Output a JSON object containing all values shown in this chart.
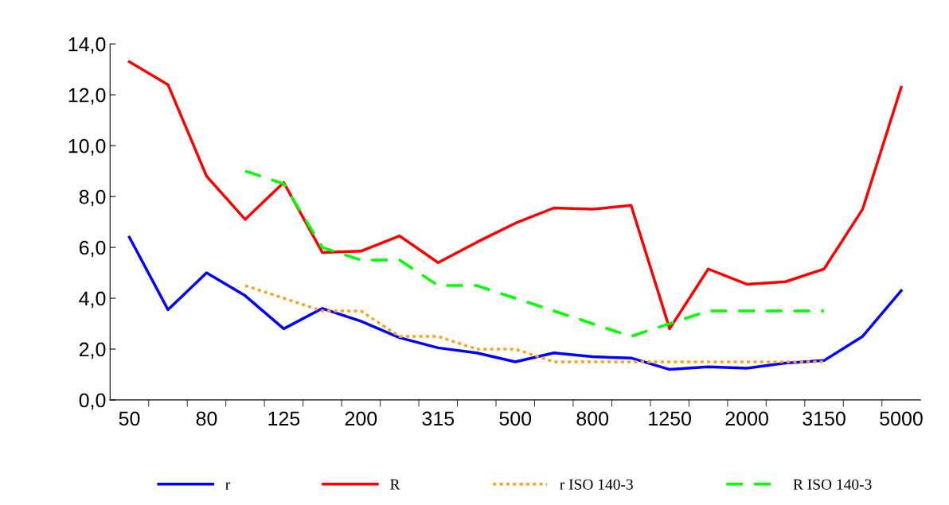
{
  "chart_data": {
    "type": "line",
    "categories": [
      "50",
      null,
      "80",
      null,
      "125",
      null,
      "200",
      null,
      "315",
      null,
      "500",
      null,
      "800",
      null,
      "1250",
      null,
      "2000",
      null,
      "3150",
      null,
      "5000"
    ],
    "series": [
      {
        "name": "r",
        "color": "#0000ff",
        "line_style": "solid",
        "values": [
          6.4,
          3.55,
          5.0,
          4.1,
          2.8,
          3.6,
          3.1,
          2.45,
          2.05,
          1.85,
          1.5,
          1.85,
          1.7,
          1.65,
          1.2,
          1.3,
          1.25,
          1.45,
          1.55,
          2.5,
          4.3
        ]
      },
      {
        "name": "R",
        "color": "#ff0000",
        "line_style": "solid",
        "values": [
          13.3,
          12.4,
          8.8,
          7.1,
          8.55,
          5.8,
          5.85,
          6.45,
          5.4,
          6.2,
          6.95,
          7.55,
          7.5,
          7.65,
          2.8,
          5.15,
          4.55,
          4.65,
          5.15,
          7.5,
          12.3
        ]
      },
      {
        "name": "r ISO 140-3",
        "color": "#ffa020",
        "line_style": "dotted",
        "values": [
          null,
          null,
          null,
          4.5,
          4.0,
          3.5,
          3.5,
          2.5,
          2.5,
          2.0,
          2.0,
          1.5,
          1.5,
          1.5,
          1.5,
          1.5,
          1.5,
          1.5,
          1.5,
          null,
          null
        ]
      },
      {
        "name": "R ISO 140-3",
        "color": "#00ff00",
        "line_style": "dashed",
        "values": [
          null,
          null,
          null,
          9.0,
          8.5,
          6.0,
          5.5,
          5.5,
          4.5,
          4.5,
          4.0,
          3.5,
          3.0,
          2.5,
          3.0,
          3.5,
          3.5,
          3.5,
          3.5,
          null,
          null
        ]
      }
    ],
    "ylim": [
      0,
      14
    ],
    "yticks": [
      {
        "value": 0,
        "label": "0,0"
      },
      {
        "value": 2,
        "label": "2,0"
      },
      {
        "value": 4,
        "label": "4,0"
      },
      {
        "value": 6,
        "label": "6,0"
      },
      {
        "value": 8,
        "label": "8,0"
      },
      {
        "value": 10,
        "label": "10,0"
      },
      {
        "value": 12,
        "label": "12,0"
      },
      {
        "value": 14,
        "label": "14,0"
      }
    ],
    "grid": false,
    "legend": "bottom",
    "marker": "none"
  }
}
